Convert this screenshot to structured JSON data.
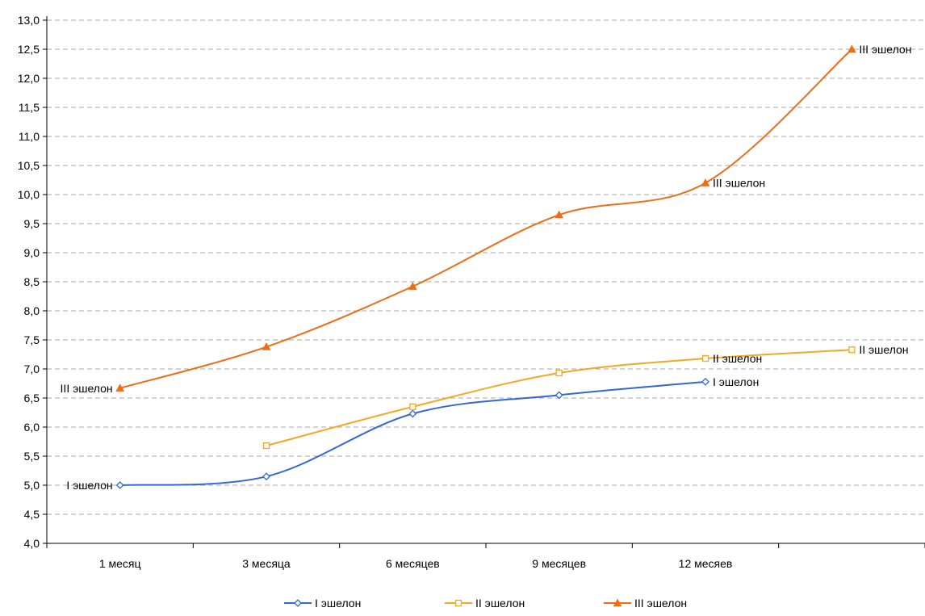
{
  "chart_data": {
    "type": "line",
    "categories": [
      "1 месяц",
      "3 месяца",
      "6 месяцев",
      "9 месяцев",
      "12 месяев",
      ""
    ],
    "ylim": [
      4.0,
      13.0
    ],
    "y_ticks": [
      "4,0",
      "4,5",
      "5,0",
      "5,5",
      "6,0",
      "6,5",
      "7,0",
      "7,5",
      "8,0",
      "8,5",
      "9,0",
      "9,5",
      "10,0",
      "10,5",
      "11,0",
      "11,5",
      "12,0",
      "12,5",
      "13,0"
    ],
    "grid": true,
    "legend_position": "bottom",
    "series": [
      {
        "name": "I эшелон",
        "color": "#3366dd",
        "marker": "diamond-open",
        "points": [
          {
            "x": 0.5,
            "y": 5.0,
            "label": "I эшелон",
            "label_side": "left"
          },
          {
            "x": 1.5,
            "y": 5.15
          },
          {
            "x": 2.5,
            "y": 6.23
          },
          {
            "x": 3.5,
            "y": 6.55
          },
          {
            "x": 4.5,
            "y": 6.78,
            "label": "I эшелон",
            "label_side": "right"
          }
        ]
      },
      {
        "name": "II эшелон",
        "color": "#f5a623",
        "marker": "square-open",
        "points": [
          {
            "x": 1.5,
            "y": 5.68
          },
          {
            "x": 2.5,
            "y": 6.35
          },
          {
            "x": 3.5,
            "y": 6.93
          },
          {
            "x": 4.5,
            "y": 7.18,
            "label": "II эшелон",
            "label_side": "right"
          },
          {
            "x": 5.5,
            "y": 7.33,
            "label": "II эшелон",
            "label_side": "right"
          }
        ]
      },
      {
        "name": "III эшелон",
        "color": "#f26b14",
        "marker": "triangle-filled",
        "points": [
          {
            "x": 0.5,
            "y": 6.67,
            "label": "III эшелон",
            "label_side": "left"
          },
          {
            "x": 1.5,
            "y": 7.38
          },
          {
            "x": 2.5,
            "y": 8.42
          },
          {
            "x": 3.5,
            "y": 9.65
          },
          {
            "x": 4.5,
            "y": 10.2,
            "label": "III эшелон",
            "label_side": "right"
          },
          {
            "x": 5.5,
            "y": 12.5,
            "label": "III эшелон",
            "label_side": "right"
          }
        ]
      }
    ]
  }
}
